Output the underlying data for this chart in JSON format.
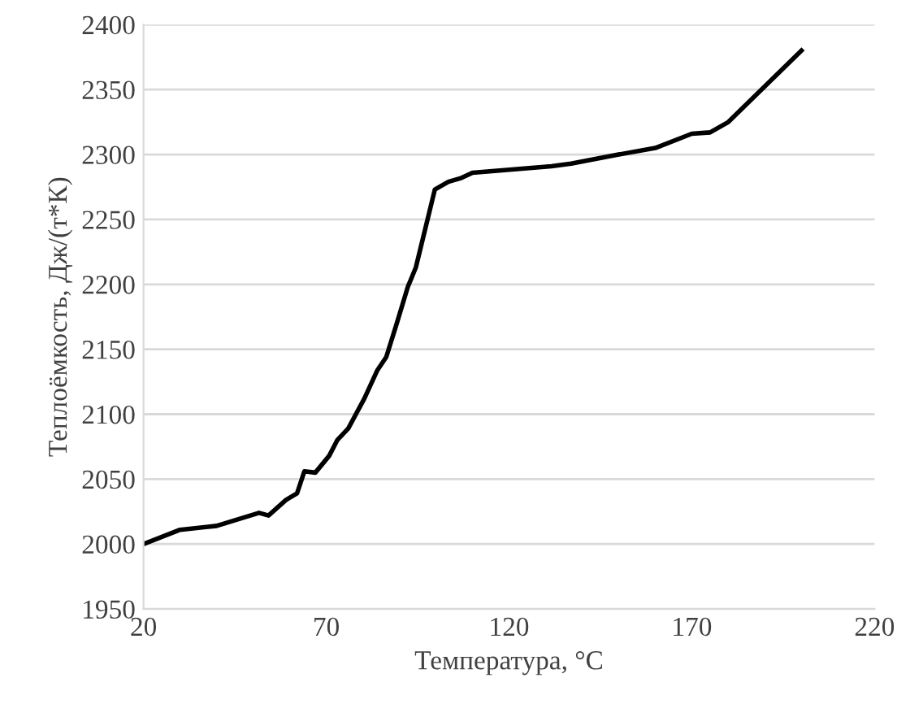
{
  "chart_data": {
    "type": "line",
    "xlabel": "Температура, °C",
    "ylabel": "Теплоёмкость, Дж/(т*К)",
    "x": [
      20,
      30,
      40,
      51.6,
      54.2,
      59,
      62,
      64,
      67,
      70.8,
      73,
      76,
      80.4,
      84,
      86.4,
      89.3,
      92.3,
      94.5,
      99.7,
      103.4,
      107,
      110,
      131.6,
      137,
      150,
      160,
      170,
      175,
      180,
      200
    ],
    "series": [
      {
        "color": "#000000",
        "values": [
          2000,
          2011,
          2014,
          2024,
          2022,
          2034,
          2039,
          2056,
          2055,
          2068,
          2080,
          2089,
          2112,
          2134,
          2144,
          2170,
          2198,
          2213,
          2273,
          2279,
          2282,
          2286,
          2291,
          2293,
          2300,
          2305,
          2316,
          2317,
          2325,
          2380
        ]
      }
    ],
    "xlim": [
      20,
      220
    ],
    "xticks": [
      20,
      70,
      120,
      170,
      220
    ],
    "ylim": [
      1950,
      2400
    ],
    "yticks": [
      1950,
      2000,
      2050,
      2100,
      2150,
      2200,
      2250,
      2300,
      2350,
      2400
    ],
    "grid": "y",
    "legend": false,
    "marker": "none",
    "line_style": "solid"
  }
}
